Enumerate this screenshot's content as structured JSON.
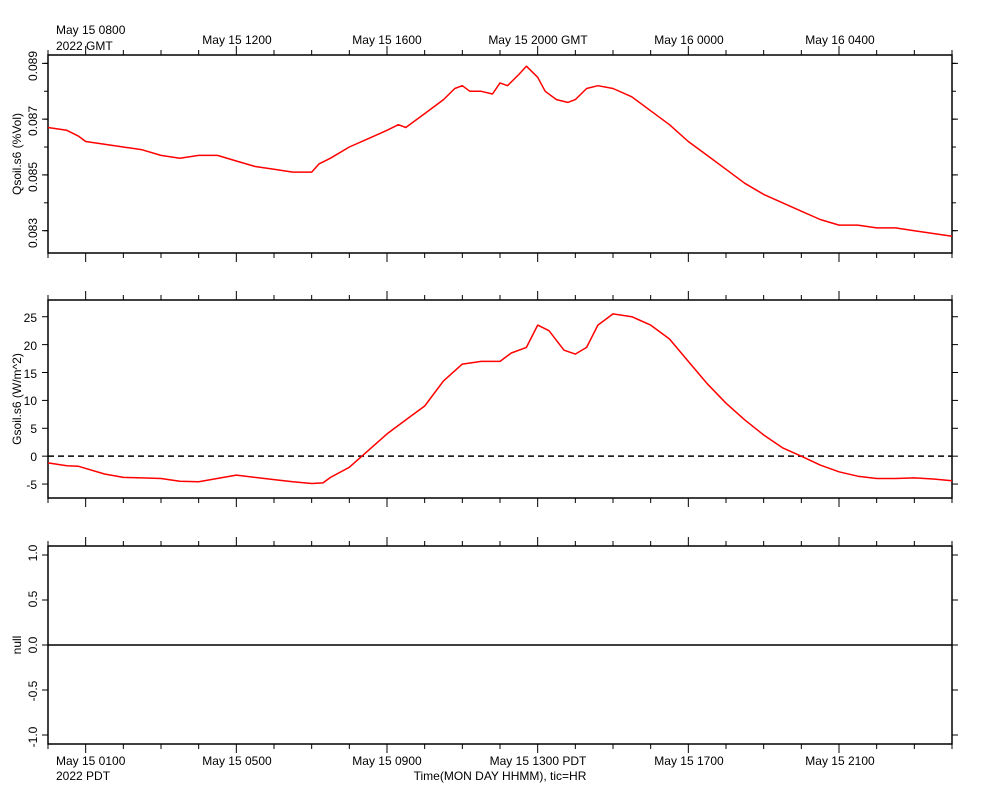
{
  "top_axis": {
    "corner_label_line1": "May 15 0800",
    "corner_label_line2": "2022 GMT",
    "tick_labels": [
      "May 15 1200",
      "May 15 1600",
      "May 15 2000 GMT",
      "May 16 0000",
      "May 16 0400"
    ]
  },
  "bottom_axis": {
    "corner_label_line1": "May 15 0100",
    "corner_label_line2": "2022 PDT",
    "tick_labels": [
      "May 15 0500",
      "May 15 0900",
      "May 15 1300 PDT",
      "May 15 1700",
      "May 15 2100"
    ],
    "title": "Time(MON DAY HHMM), tic=HR"
  },
  "colors": {
    "series": "#ff0000",
    "axes": "#000000",
    "zero_line": "#000000"
  },
  "chart_data": [
    {
      "type": "line",
      "ylabel": "Qsoil.s6 (%Vol)",
      "ylim": [
        0.0822,
        0.0893
      ],
      "yticks": [
        "0.083",
        "0.085",
        "0.087",
        "0.089"
      ],
      "x_unit": "hours since May 15 0100 PDT",
      "xlim": [
        0,
        24
      ],
      "x_tick_hours": [
        1,
        5,
        9,
        13,
        17,
        21
      ],
      "grid": false,
      "series": [
        {
          "x": [
            0,
            0.5,
            0.8,
            1.0,
            1.5,
            2.0,
            2.5,
            3.0,
            3.5,
            4.0,
            4.5,
            5.0,
            5.5,
            6.0,
            6.5,
            7.0,
            7.2,
            7.5,
            8.0,
            8.5,
            9.0,
            9.3,
            9.5,
            10.0,
            10.5,
            10.8,
            11.0,
            11.2,
            11.5,
            11.8,
            12.0,
            12.2,
            12.5,
            12.7,
            13.0,
            13.2,
            13.5,
            13.8,
            14.0,
            14.3,
            14.6,
            15.0,
            15.5,
            16.0,
            16.5,
            17.0,
            17.5,
            18.0,
            18.5,
            19.0,
            19.5,
            20.0,
            20.5,
            21.0,
            21.5,
            22.0,
            22.5,
            23.0,
            23.5,
            24.0
          ],
          "values": [
            0.0867,
            0.0866,
            0.0864,
            0.0862,
            0.0861,
            0.086,
            0.0859,
            0.0857,
            0.0856,
            0.0857,
            0.0857,
            0.0855,
            0.0853,
            0.0852,
            0.0851,
            0.0851,
            0.0854,
            0.0856,
            0.086,
            0.0863,
            0.0866,
            0.0868,
            0.0867,
            0.0872,
            0.0877,
            0.0881,
            0.0882,
            0.088,
            0.088,
            0.0879,
            0.0883,
            0.0882,
            0.0886,
            0.0889,
            0.0885,
            0.088,
            0.0877,
            0.0876,
            0.0877,
            0.0881,
            0.0882,
            0.0881,
            0.0878,
            0.0873,
            0.0868,
            0.0862,
            0.0857,
            0.0852,
            0.0847,
            0.0843,
            0.084,
            0.0837,
            0.0834,
            0.0832,
            0.0832,
            0.0831,
            0.0831,
            0.083,
            0.0829,
            0.0828
          ]
        }
      ]
    },
    {
      "type": "line",
      "ylabel": "Gsoil.s6 (W/m^2)",
      "ylim": [
        -7.5,
        28
      ],
      "yticks": [
        "-5",
        "0",
        "5",
        "10",
        "15",
        "20",
        "25"
      ],
      "reference_line": 0,
      "x_unit": "hours since May 15 0100 PDT",
      "xlim": [
        0,
        24
      ],
      "x_tick_hours": [
        1,
        5,
        9,
        13,
        17,
        21
      ],
      "grid": false,
      "series": [
        {
          "x": [
            0,
            0.5,
            0.8,
            1.5,
            2.0,
            2.5,
            3.0,
            3.5,
            4.0,
            5.0,
            6.0,
            6.5,
            7.0,
            7.3,
            7.5,
            8.0,
            8.5,
            9.0,
            9.5,
            10.0,
            10.5,
            11.0,
            11.5,
            12.0,
            12.3,
            12.7,
            13.0,
            13.3,
            13.7,
            14.0,
            14.3,
            14.6,
            15.0,
            15.5,
            16.0,
            16.5,
            17.0,
            17.5,
            18.0,
            18.5,
            19.0,
            19.5,
            20.0,
            20.5,
            21.0,
            21.5,
            22.0,
            22.5,
            23.0,
            23.5,
            24.0
          ],
          "values": [
            -1.2,
            -1.7,
            -1.8,
            -3.2,
            -3.8,
            -3.9,
            -4.0,
            -4.5,
            -4.6,
            -3.4,
            -4.2,
            -4.6,
            -4.9,
            -4.8,
            -3.8,
            -2.0,
            1.0,
            4.0,
            6.5,
            9.0,
            13.5,
            16.5,
            17.0,
            17.0,
            18.5,
            19.5,
            23.5,
            22.5,
            19.0,
            18.3,
            19.5,
            23.5,
            25.5,
            25.0,
            23.5,
            21.0,
            17.0,
            13.0,
            9.5,
            6.5,
            3.8,
            1.5,
            0.0,
            -1.6,
            -2.8,
            -3.6,
            -4.0,
            -4.0,
            -3.9,
            -4.1,
            -4.4
          ]
        }
      ]
    },
    {
      "type": "line",
      "ylabel": "null",
      "ylim": [
        -1.1,
        1.1
      ],
      "yticks": [
        "-1.0",
        "-0.5",
        "0.0",
        "0.5",
        "1.0"
      ],
      "x_unit": "hours since May 15 0100 PDT",
      "xlim": [
        0,
        24
      ],
      "x_tick_hours": [
        1,
        5,
        9,
        13,
        17,
        21
      ],
      "grid": false,
      "series": [
        {
          "x": [
            0,
            24
          ],
          "values": [
            0,
            0
          ]
        }
      ]
    }
  ]
}
